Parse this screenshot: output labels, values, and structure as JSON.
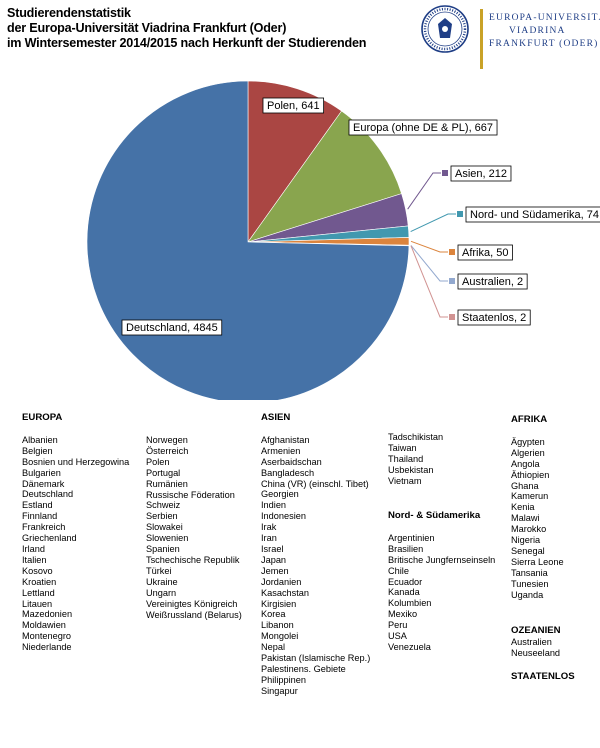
{
  "title": {
    "line1": "Studierendenstatistik",
    "line2": "der Europa-Universität Viadrina Frankfurt (Oder)",
    "line3": "im Wintersemester 2014/2015 nach Herkunft der Studierenden"
  },
  "logo": {
    "line1": "EUROPA-UNIVERSITÄT",
    "line2": "VIADRINA",
    "line3": "FRANKFURT (ODER)",
    "accent": "#1f3e86",
    "bar": "#c9a227"
  },
  "chart_data": {
    "type": "pie",
    "labels": [
      "Deutschland",
      "Polen",
      "Europa (ohne DE & PL)",
      "Asien",
      "Nord- und Südamerika",
      "Afrika",
      "Australien",
      "Staatenlos"
    ],
    "values": [
      4845,
      641,
      667,
      212,
      74,
      50,
      2,
      2
    ],
    "colors": [
      "#4572a7",
      "#aa4643",
      "#89a54e",
      "#71588f",
      "#4198af",
      "#db843d",
      "#93a9cf",
      "#d19392"
    ],
    "display_labels": [
      "Deutschland, 4845",
      "Polen, 641",
      "Europa (ohne DE & PL), 667",
      "Asien, 212",
      "Nord- und Südamerika, 74",
      "Afrika, 50",
      "Australien, 2",
      "Staatenlos, 2"
    ],
    "legend": "none"
  },
  "lists": {
    "europa": {
      "heading": "EUROPA",
      "col1": [
        "Albanien",
        "Belgien",
        "Bosnien und Herzegowina",
        "Bulgarien",
        "Dänemark",
        "Deutschland",
        "Estland",
        "Finnland",
        "Frankreich",
        "Griechenland",
        "Irland",
        "Italien",
        "Kosovo",
        "Kroatien",
        "Lettland",
        "Litauen",
        "Mazedonien",
        "Moldawien",
        "Montenegro",
        "Niederlande"
      ],
      "col2": [
        "Norwegen",
        "Österreich",
        "Polen",
        "Portugal",
        "Rumänien",
        "Russische Föderation",
        "Schweiz",
        "Serbien",
        "Slowakei",
        "Slowenien",
        "Spanien",
        "Tschechische Republik",
        "Türkei",
        "Ukraine",
        "Ungarn",
        "Vereinigtes Königreich",
        "Weißrussland (Belarus)"
      ]
    },
    "asien": {
      "heading": "ASIEN",
      "col1": [
        "Afghanistan",
        "Armenien",
        "Aserbaidschan",
        "Bangladesch",
        "China (VR) (einschl. Tibet)",
        "Georgien",
        "Indien",
        "Indonesien",
        "Irak",
        "Iran",
        "Israel",
        "Japan",
        "Jemen",
        "Jordanien",
        "Kasachstan",
        "Kirgisien",
        "Korea",
        "Libanon",
        "Mongolei",
        "Nepal",
        "Pakistan (Islamische Rep.)",
        "Palestinens. Gebiete",
        "Philippinen",
        "Singapur"
      ],
      "col2": [
        "Tadschikistan",
        "Taiwan",
        "Thailand",
        "Usbekistan",
        "Vietnam"
      ]
    },
    "amerika": {
      "heading": "Nord- & Südamerika",
      "items": [
        "Argentinien",
        "Brasilien",
        "Britische Jungfernseinseln",
        "Chile",
        "Ecuador",
        "Kanada",
        "Kolumbien",
        "Mexiko",
        "Peru",
        "USA",
        "Venezuela"
      ]
    },
    "afrika": {
      "heading": "AFRIKA",
      "items": [
        "Ägypten",
        "Algerien",
        "Angola",
        "Äthiopien",
        "Ghana",
        "Kamerun",
        "Kenia",
        "Malawi",
        "Marokko",
        "Nigeria",
        "Senegal",
        "Sierra Leone",
        "Tansania",
        "Tunesien",
        "Uganda"
      ]
    },
    "ozeanien": {
      "heading": "OZEANIEN",
      "items": [
        "Australien",
        "Neuseeland"
      ]
    },
    "staatenlos": {
      "heading": "STAATENLOS"
    }
  }
}
